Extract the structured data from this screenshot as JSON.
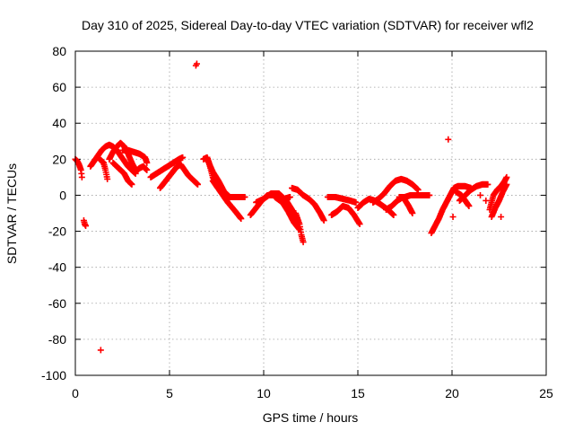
{
  "chart_data": {
    "type": "scatter",
    "title": "Day 310 of 2025, Sidereal Day-to-day VTEC variation (SDTVAR) for receiver wfl2",
    "xlabel": "GPS time / hours",
    "ylabel": "SDTVAR / TECUs",
    "xlim": [
      0,
      25
    ],
    "ylim": [
      -100,
      80
    ],
    "xticks": [
      0,
      5,
      10,
      15,
      20,
      25
    ],
    "yticks": [
      -100,
      -80,
      -60,
      -40,
      -20,
      0,
      20,
      40,
      60,
      80
    ],
    "grid": true,
    "marker": "+",
    "marker_color": "#ff0000",
    "legend": "none",
    "series": [
      {
        "segments": [
          [
            [
              0.0,
              20
            ],
            [
              0.1,
              19
            ],
            [
              0.2,
              17
            ],
            [
              0.3,
              14
            ],
            [
              0.35,
              10
            ]
          ],
          [
            [
              0.45,
              -14
            ],
            [
              0.5,
              -16
            ],
            [
              0.55,
              -17
            ]
          ],
          [
            [
              0.8,
              16
            ],
            [
              1.0,
              19
            ],
            [
              1.2,
              22
            ],
            [
              1.4,
              25
            ],
            [
              1.6,
              27
            ],
            [
              1.8,
              28
            ],
            [
              2.0,
              27
            ],
            [
              2.2,
              25
            ],
            [
              2.4,
              22
            ],
            [
              2.6,
              19
            ],
            [
              2.8,
              16
            ],
            [
              3.0,
              14
            ],
            [
              3.2,
              12
            ]
          ],
          [
            [
              1.3,
              20
            ],
            [
              1.5,
              18
            ],
            [
              1.6,
              14
            ],
            [
              1.7,
              9
            ]
          ],
          [
            [
              1.8,
              20
            ],
            [
              2.0,
              24
            ],
            [
              2.2,
              27
            ],
            [
              2.4,
              29
            ],
            [
              2.6,
              27
            ],
            [
              2.8,
              23
            ],
            [
              3.0,
              18
            ],
            [
              3.2,
              14
            ]
          ],
          [
            [
              2.0,
              18
            ],
            [
              2.3,
              15
            ],
            [
              2.6,
              12
            ],
            [
              2.8,
              8
            ],
            [
              3.0,
              6
            ]
          ],
          [
            [
              2.5,
              25
            ],
            [
              2.8,
              25
            ],
            [
              3.1,
              24
            ],
            [
              3.4,
              23
            ],
            [
              3.7,
              21
            ],
            [
              3.8,
              18
            ]
          ],
          [
            [
              3.2,
              13
            ],
            [
              3.4,
              15
            ],
            [
              3.6,
              16
            ],
            [
              3.8,
              14
            ]
          ],
          [
            [
              4.0,
              10
            ],
            [
              4.3,
              12
            ],
            [
              4.6,
              14
            ],
            [
              4.9,
              16
            ],
            [
              5.2,
              18
            ],
            [
              5.5,
              20
            ],
            [
              5.7,
              21
            ]
          ],
          [
            [
              4.5,
              4
            ],
            [
              4.8,
              8
            ],
            [
              5.1,
              12
            ],
            [
              5.4,
              16
            ],
            [
              5.6,
              17
            ],
            [
              5.8,
              14
            ],
            [
              6.0,
              11
            ],
            [
              6.2,
              9
            ],
            [
              6.4,
              7
            ],
            [
              6.5,
              6
            ]
          ],
          [
            [
              6.8,
              20
            ],
            [
              7.0,
              21
            ],
            [
              7.1,
              18
            ],
            [
              7.2,
              14
            ],
            [
              7.3,
              10
            ],
            [
              7.5,
              6
            ],
            [
              7.7,
              4
            ]
          ],
          [
            [
              7.0,
              20
            ],
            [
              7.3,
              13
            ],
            [
              7.6,
              8
            ],
            [
              7.9,
              2
            ],
            [
              8.2,
              -1
            ],
            [
              8.6,
              -1
            ],
            [
              9.0,
              -1
            ]
          ],
          [
            [
              7.3,
              8
            ],
            [
              7.7,
              2
            ],
            [
              8.1,
              -4
            ],
            [
              8.5,
              -9
            ],
            [
              8.8,
              -13
            ]
          ],
          [
            [
              9.3,
              -11
            ],
            [
              9.6,
              -7
            ],
            [
              9.9,
              -3
            ],
            [
              10.2,
              0
            ],
            [
              10.5,
              0
            ],
            [
              10.8,
              -1
            ],
            [
              11.1,
              -2
            ],
            [
              11.4,
              -1
            ]
          ],
          [
            [
              9.6,
              -4
            ],
            [
              10.0,
              -2
            ],
            [
              10.4,
              1
            ],
            [
              10.8,
              1
            ],
            [
              11.2,
              -3
            ],
            [
              11.5,
              -8
            ],
            [
              11.8,
              -14
            ]
          ],
          [
            [
              10.6,
              -1
            ],
            [
              11.0,
              -4
            ],
            [
              11.3,
              -9
            ],
            [
              11.6,
              -15
            ],
            [
              11.9,
              -19
            ]
          ],
          [
            [
              11.5,
              4
            ],
            [
              11.8,
              3
            ],
            [
              12.1,
              0
            ],
            [
              12.4,
              -2
            ],
            [
              12.7,
              -5
            ],
            [
              13.0,
              -10
            ],
            [
              13.2,
              -14
            ]
          ],
          [
            [
              11.7,
              -10
            ],
            [
              11.9,
              -16
            ],
            [
              12.0,
              -22
            ],
            [
              12.1,
              -26
            ]
          ],
          [
            [
              13.4,
              -1
            ],
            [
              13.8,
              -1
            ],
            [
              14.2,
              -2
            ],
            [
              14.6,
              -3
            ],
            [
              14.9,
              -4
            ]
          ],
          [
            [
              13.6,
              -11
            ],
            [
              13.9,
              -9
            ],
            [
              14.2,
              -6
            ],
            [
              14.5,
              -7
            ],
            [
              14.8,
              -11
            ],
            [
              15.1,
              -16
            ]
          ],
          [
            [
              15.0,
              -7
            ],
            [
              15.3,
              -4
            ],
            [
              15.6,
              -2
            ],
            [
              15.9,
              -3
            ],
            [
              16.2,
              -5
            ],
            [
              16.6,
              -8
            ],
            [
              16.9,
              -11
            ]
          ],
          [
            [
              15.8,
              -4
            ],
            [
              16.1,
              -2
            ],
            [
              16.4,
              1
            ],
            [
              16.7,
              5
            ],
            [
              17.0,
              8
            ],
            [
              17.3,
              9
            ],
            [
              17.6,
              8
            ],
            [
              17.9,
              6
            ],
            [
              18.2,
              3
            ]
          ],
          [
            [
              16.5,
              -8
            ],
            [
              16.8,
              -6
            ],
            [
              17.1,
              -3
            ],
            [
              17.4,
              -1
            ],
            [
              17.7,
              -6
            ],
            [
              17.9,
              -10
            ]
          ],
          [
            [
              17.2,
              -1
            ],
            [
              17.5,
              -1
            ],
            [
              17.8,
              0
            ],
            [
              18.1,
              0
            ],
            [
              18.5,
              0
            ],
            [
              18.8,
              0
            ]
          ],
          [
            [
              18.9,
              -21
            ],
            [
              19.1,
              -17
            ],
            [
              19.3,
              -13
            ],
            [
              19.5,
              -8
            ],
            [
              19.7,
              -4
            ],
            [
              19.9,
              0
            ],
            [
              20.1,
              4
            ],
            [
              20.3,
              5
            ],
            [
              20.5,
              5
            ],
            [
              20.7,
              5
            ],
            [
              21.0,
              4
            ]
          ],
          [
            [
              20.2,
              2
            ],
            [
              20.5,
              0
            ],
            [
              20.7,
              -3
            ],
            [
              20.9,
              -6
            ]
          ],
          [
            [
              20.4,
              -3
            ],
            [
              20.7,
              0
            ],
            [
              21.0,
              3
            ],
            [
              21.3,
              5
            ],
            [
              21.6,
              6
            ],
            [
              21.9,
              6
            ]
          ],
          [
            [
              22.0,
              -8
            ],
            [
              22.1,
              -4
            ],
            [
              22.2,
              0
            ],
            [
              22.4,
              3
            ],
            [
              22.6,
              5
            ],
            [
              22.8,
              8
            ],
            [
              22.9,
              10
            ]
          ],
          [
            [
              22.1,
              -12
            ],
            [
              22.3,
              -7
            ],
            [
              22.5,
              -3
            ],
            [
              22.7,
              2
            ],
            [
              22.9,
              6
            ]
          ]
        ],
        "points": [
          [
            1.35,
            -86
          ],
          [
            6.45,
            73
          ],
          [
            6.4,
            72
          ],
          [
            19.8,
            31
          ],
          [
            20.05,
            -12
          ],
          [
            21.5,
            0
          ],
          [
            21.8,
            -3
          ],
          [
            22.6,
            -12
          ]
        ]
      }
    ]
  }
}
